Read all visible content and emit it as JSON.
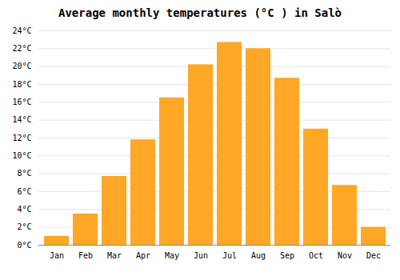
{
  "chart_data": {
    "type": "bar",
    "title": "Average monthly temperatures (°C ) in Salò",
    "categories": [
      "Jan",
      "Feb",
      "Mar",
      "Apr",
      "May",
      "Jun",
      "Jul",
      "Aug",
      "Sep",
      "Oct",
      "Nov",
      "Dec"
    ],
    "values": [
      1.0,
      3.5,
      7.7,
      11.8,
      16.5,
      20.2,
      22.7,
      22.0,
      18.7,
      13.0,
      6.7,
      2.0
    ],
    "color": "#FFA726",
    "ylim": [
      0,
      24
    ],
    "yticks": [
      {
        "value": 0,
        "label": "0°C"
      },
      {
        "value": 2,
        "label": "2°C"
      },
      {
        "value": 4,
        "label": "4°C"
      },
      {
        "value": 6,
        "label": "6°C"
      },
      {
        "value": 8,
        "label": "8°C"
      },
      {
        "value": 10,
        "label": "10°C"
      },
      {
        "value": 12,
        "label": "12°C"
      },
      {
        "value": 14,
        "label": "14°C"
      },
      {
        "value": 16,
        "label": "16°C"
      },
      {
        "value": 18,
        "label": "18°C"
      },
      {
        "value": 20,
        "label": "20°C"
      },
      {
        "value": 22,
        "label": "22°C"
      },
      {
        "value": 24,
        "label": "24°C"
      }
    ],
    "grid": true
  }
}
